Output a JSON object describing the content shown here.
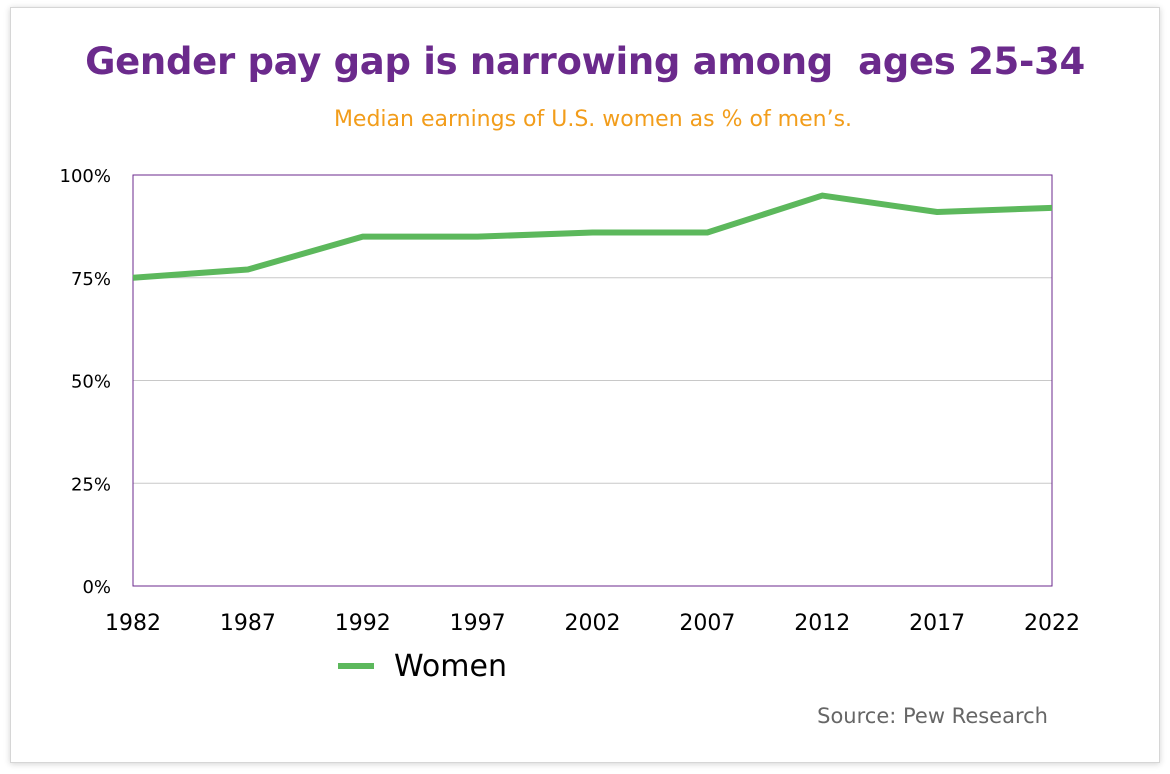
{
  "chart_data": {
    "type": "line",
    "title": "Gender pay gap is narrowing among  ages 25-34",
    "subtitle": "Median earnings of U.S. women as % of men’s.",
    "x": [
      "1982",
      "1987",
      "1992",
      "1997",
      "2002",
      "2007",
      "2012",
      "2017",
      "2022"
    ],
    "series": [
      {
        "name": "Women",
        "values": [
          75,
          77,
          85,
          85,
          86,
          86,
          95,
          91,
          92
        ],
        "color": "#5cb85c"
      }
    ],
    "y_ticks": [
      "0%",
      "25%",
      "50%",
      "75%",
      "100%"
    ],
    "y_tick_values": [
      0,
      25,
      50,
      75,
      100
    ],
    "ylim": [
      0,
      100
    ],
    "xlabel": "",
    "ylabel": "",
    "grid": true,
    "legend_position": "bottom-left",
    "source": "Source: Pew Research",
    "colors": {
      "title": "#6b2a8c",
      "subtitle": "#f29d1b",
      "line": "#5cb85c",
      "plot_border": "#6b2a8c",
      "gridline": "#c8c8c8"
    }
  }
}
